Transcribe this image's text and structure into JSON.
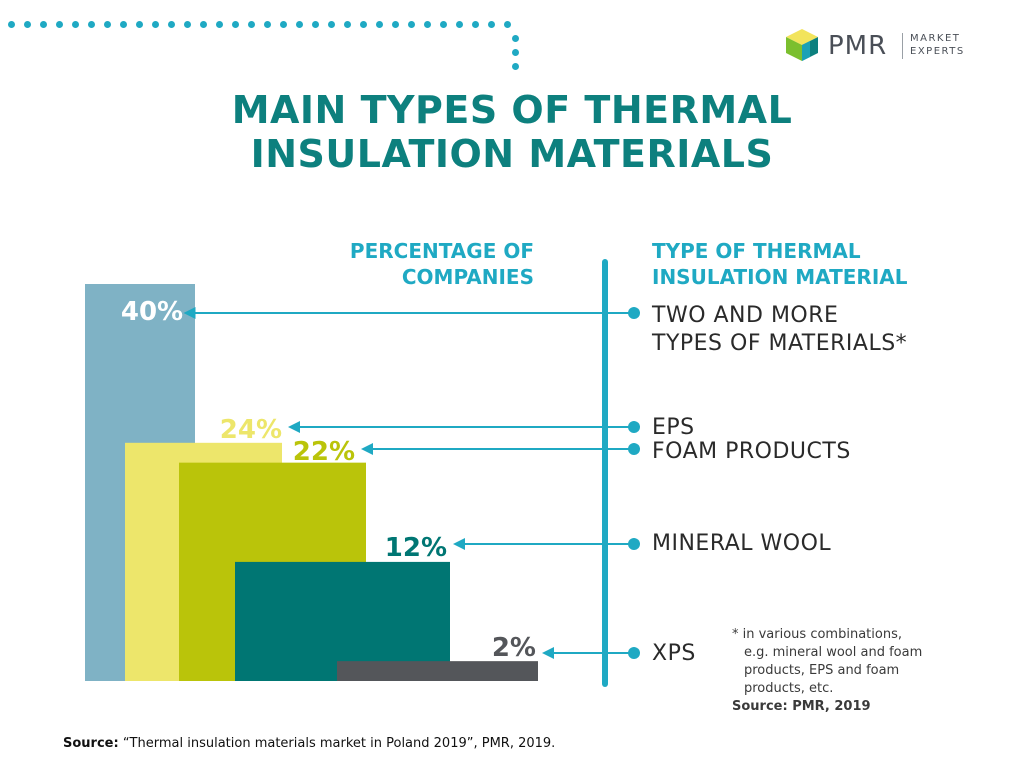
{
  "logo": {
    "name": "PMR",
    "sub_line1": "MARKET",
    "sub_line2": "EXPERTS",
    "colors": [
      "#7bbf2e",
      "#0d807e",
      "#f2e45c",
      "#1fa9c3"
    ]
  },
  "title_line1": "MAIN TYPES OF THERMAL",
  "title_line2": "INSULATION MATERIALS",
  "header_left_line1": "PERCENTAGE OF",
  "header_left_line2": "COMPANIES",
  "header_right_line1": "TYPE OF THERMAL",
  "header_right_line2": "INSULATION MATERIAL",
  "materials": {
    "m1_line1": "TWO AND MORE",
    "m1_line2": "TYPES OF MATERIALS*",
    "m2": "EPS",
    "m3": "FOAM PRODUCTS",
    "m4": "MINERAL WOOL",
    "m5": "XPS"
  },
  "note": {
    "line1": "* in various combinations,",
    "line2": "e.g. mineral wool and foam",
    "line3": "products, EPS and foam",
    "line4": "products, etc.",
    "source": "Source: PMR, 2019"
  },
  "source": {
    "label": "Source:",
    "text": " “Thermal insulation materials market in Poland 2019”, PMR, 2019."
  },
  "chart_data": {
    "type": "bar",
    "categories": [
      "TWO AND MORE TYPES OF MATERIALS*",
      "EPS",
      "FOAM PRODUCTS",
      "MINERAL WOOL",
      "XPS"
    ],
    "values": [
      40,
      24,
      22,
      12,
      2
    ],
    "value_labels": [
      "40%",
      "24%",
      "22%",
      "12%",
      "2%"
    ],
    "colors": [
      "#7fb2c5",
      "#ede66b",
      "#bac40a",
      "#007673",
      "#54565a"
    ],
    "label_colors": [
      "#ffffff",
      "#ede66b",
      "#bac40a",
      "#007673",
      "#54565a"
    ],
    "ylim": [
      0,
      40
    ],
    "accent": "#1fa9c3"
  }
}
